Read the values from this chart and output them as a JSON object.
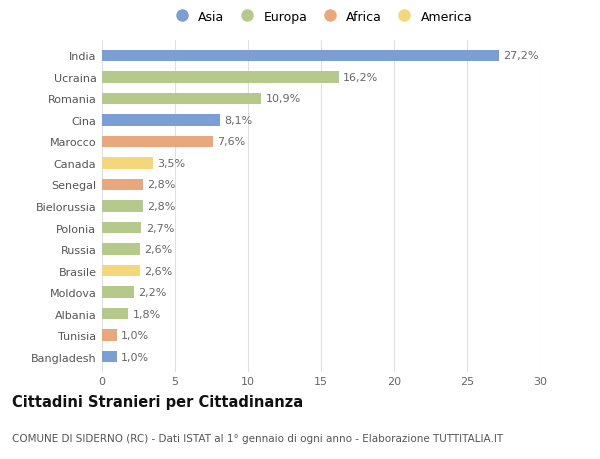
{
  "categories": [
    "India",
    "Ucraina",
    "Romania",
    "Cina",
    "Marocco",
    "Canada",
    "Senegal",
    "Bielorussia",
    "Polonia",
    "Russia",
    "Brasile",
    "Moldova",
    "Albania",
    "Tunisia",
    "Bangladesh"
  ],
  "values": [
    27.2,
    16.2,
    10.9,
    8.1,
    7.6,
    3.5,
    2.8,
    2.8,
    2.7,
    2.6,
    2.6,
    2.2,
    1.8,
    1.0,
    1.0
  ],
  "labels": [
    "27,2%",
    "16,2%",
    "10,9%",
    "8,1%",
    "7,6%",
    "3,5%",
    "2,8%",
    "2,8%",
    "2,7%",
    "2,6%",
    "2,6%",
    "2,2%",
    "1,8%",
    "1,0%",
    "1,0%"
  ],
  "continents": [
    "Asia",
    "Europa",
    "Europa",
    "Asia",
    "Africa",
    "America",
    "Africa",
    "Europa",
    "Europa",
    "Europa",
    "America",
    "Europa",
    "Europa",
    "Africa",
    "Asia"
  ],
  "continent_colors": {
    "Asia": "#7b9fd4",
    "Europa": "#b5c98a",
    "Africa": "#e8a87c",
    "America": "#f5d67a"
  },
  "legend_order": [
    "Asia",
    "Europa",
    "Africa",
    "America"
  ],
  "title": "Cittadini Stranieri per Cittadinanza",
  "subtitle": "COMUNE DI SIDERNO (RC) - Dati ISTAT al 1° gennaio di ogni anno - Elaborazione TUTTITALIA.IT",
  "xlim": [
    0,
    30
  ],
  "xticks": [
    0,
    5,
    10,
    15,
    20,
    25,
    30
  ],
  "background_color": "#ffffff",
  "grid_color": "#e0e0e0",
  "bar_height": 0.55,
  "label_fontsize": 8,
  "title_fontsize": 10.5,
  "subtitle_fontsize": 7.5,
  "ytick_fontsize": 8,
  "xtick_fontsize": 8
}
